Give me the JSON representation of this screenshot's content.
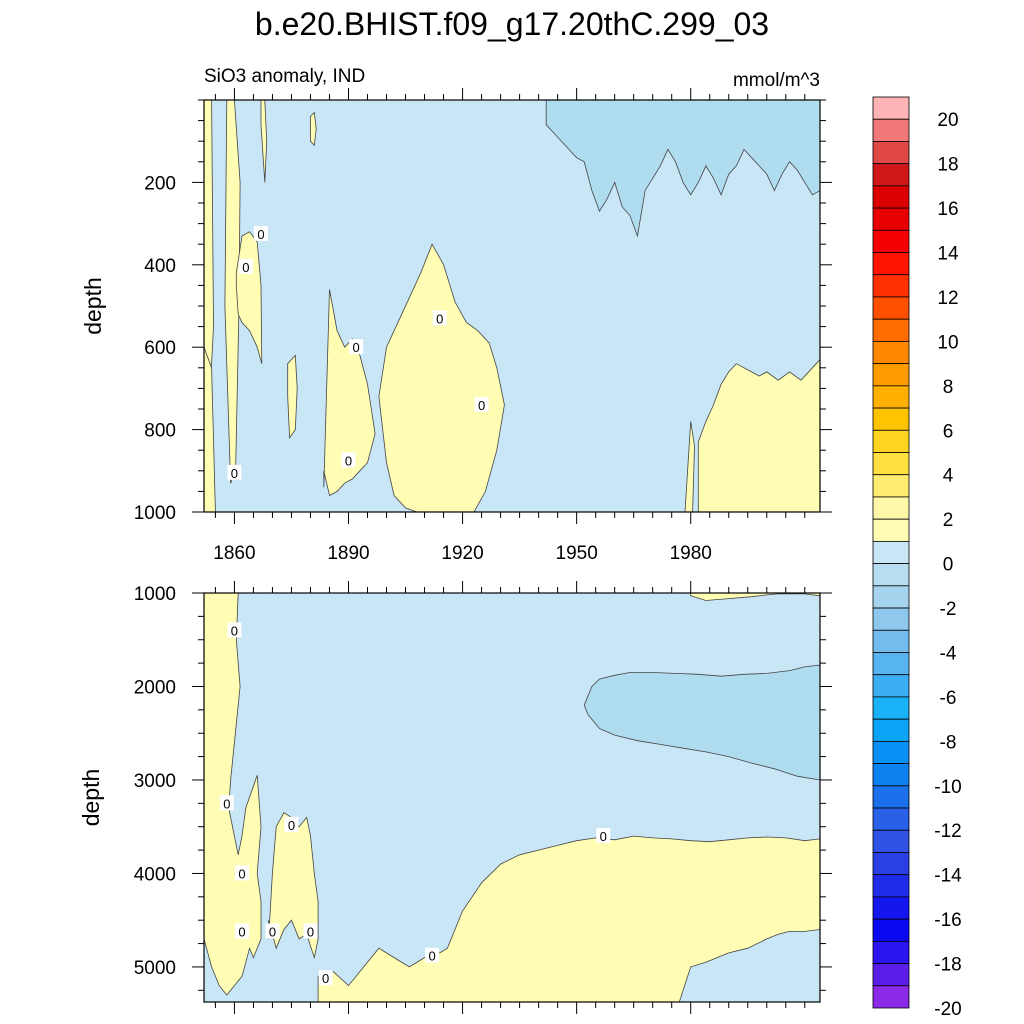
{
  "title": "b.e20.BHIST.f09_g17.20thC.299_03",
  "subtitle_left": "SiO3 anomaly, IND",
  "subtitle_right": "mmol/m^3",
  "chart_data": [
    {
      "type": "heatmap",
      "panel": "upper",
      "ylabel": "depth",
      "ylim": [
        1000,
        0
      ],
      "xlim": [
        1852,
        2014
      ],
      "xticks": [
        "1860",
        "1890",
        "1920",
        "1950",
        "1980"
      ],
      "xtick_values": [
        1860,
        1890,
        1920,
        1950,
        1980
      ],
      "yticks": [
        "200",
        "400",
        "600",
        "800",
        "1000"
      ],
      "ytick_values": [
        200,
        400,
        600,
        800,
        1000
      ],
      "background_level": "-2 to 0",
      "regions": [
        {
          "level": "0 to 2",
          "t": [
            1852,
            1854,
            1854.5,
            1852
          ],
          "d": [
            0,
            0,
            550,
            1000
          ]
        },
        {
          "level": "0 to 2",
          "t": [
            1852,
            1854,
            1855,
            1853,
            1852
          ],
          "d": [
            600,
            650,
            1000,
            1000,
            1000
          ]
        },
        {
          "level": "0 to 2",
          "t": [
            1858,
            1860,
            1861.5,
            1861.2,
            1860.3,
            1859,
            1857.5
          ],
          "d": [
            0,
            0,
            200,
            500,
            900,
            930,
            500
          ]
        },
        {
          "level": "0 to 2",
          "t": [
            1860.5,
            1862,
            1864,
            1866,
            1867,
            1867.2,
            1866,
            1864,
            1862,
            1861,
            1860.5
          ],
          "d": [
            420,
            330,
            320,
            345,
            450,
            640,
            600,
            560,
            540,
            520,
            450
          ]
        },
        {
          "level": "0 to 2",
          "t": [
            1867,
            1868,
            1868.5,
            1868,
            1867
          ],
          "d": [
            0,
            0,
            100,
            200,
            60
          ]
        },
        {
          "level": "0 to 2",
          "t": [
            1874,
            1876,
            1876.5,
            1876,
            1874.5,
            1874
          ],
          "d": [
            640,
            620,
            700,
            800,
            820,
            720
          ]
        },
        {
          "level": "0 to 2",
          "t": [
            1883.5,
            1885,
            1887,
            1889,
            1891,
            1893,
            1895,
            1896,
            1897,
            1895,
            1893,
            1891,
            1889,
            1887,
            1885,
            1883.5
          ],
          "d": [
            940,
            460,
            560,
            600,
            580,
            620,
            690,
            750,
            810,
            880,
            900,
            920,
            930,
            950,
            960,
            900
          ]
        },
        {
          "level": "0 to 2",
          "t": [
            1898,
            1900,
            1902,
            1904,
            1906,
            1909,
            1912,
            1915,
            1918,
            1921,
            1924,
            1927,
            1929,
            1931,
            1929,
            1926,
            1923,
            1920,
            1917,
            1914,
            1911,
            1908,
            1905,
            1902,
            1900
          ],
          "d": [
            720,
            600,
            560,
            520,
            480,
            420,
            350,
            400,
            490,
            540,
            560,
            590,
            650,
            740,
            850,
            950,
            1000,
            1000,
            1000,
            1000,
            1000,
            1000,
            990,
            960,
            880
          ]
        },
        {
          "level": "0 to 2",
          "t": [
            1880,
            1881,
            1881.5,
            1881,
            1880
          ],
          "d": [
            40,
            30,
            70,
            110,
            100
          ]
        },
        {
          "level": "0 to 2",
          "t": [
            1978.5,
            1980,
            1981,
            1980.5,
            1979
          ],
          "d": [
            1000,
            780,
            840,
            1000,
            1000
          ]
        },
        {
          "level": "0 to 2",
          "t": [
            1982,
            1984,
            1986,
            1988,
            1990,
            1992,
            1994,
            1996,
            1998,
            2000,
            2003,
            2006,
            2009,
            2012,
            2014,
            2014,
            1982
          ],
          "d": [
            830,
            780,
            740,
            690,
            660,
            640,
            650,
            660,
            670,
            660,
            680,
            660,
            680,
            650,
            630,
            1000,
            1000
          ]
        },
        {
          "level": "-4 to -2",
          "t": [
            1942,
            1945,
            1948,
            1950,
            1952,
            1954,
            1956,
            1958,
            1960,
            1962,
            1964,
            1966,
            1968,
            1970,
            1972,
            1974,
            1976,
            1978,
            1980,
            1982,
            1984,
            1986,
            1988,
            1990,
            1992,
            1994,
            1996,
            1998,
            2000,
            2002,
            2004,
            2006,
            2008,
            2010,
            2012,
            2014,
            2014,
            1942
          ],
          "d": [
            60,
            90,
            120,
            140,
            150,
            220,
            270,
            240,
            200,
            260,
            280,
            330,
            220,
            190,
            160,
            120,
            150,
            200,
            230,
            200,
            160,
            190,
            230,
            180,
            160,
            120,
            140,
            160,
            180,
            220,
            180,
            150,
            170,
            200,
            230,
            220,
            0,
            0
          ]
        }
      ],
      "contour_labels": [
        {
          "text": "0",
          "t": 1867,
          "d": 325
        },
        {
          "text": "0",
          "t": 1863,
          "d": 405
        },
        {
          "text": "0",
          "t": 1914,
          "d": 530
        },
        {
          "text": "0",
          "t": 1892,
          "d": 600
        },
        {
          "text": "0",
          "t": 1925,
          "d": 740
        },
        {
          "text": "0",
          "t": 1860,
          "d": 905
        },
        {
          "text": "0",
          "t": 1890,
          "d": 875
        }
      ]
    },
    {
      "type": "heatmap",
      "panel": "lower",
      "ylabel": "depth",
      "ylim": [
        5375,
        1000
      ],
      "xlim": [
        1852,
        2014
      ],
      "yticks": [
        "1000",
        "2000",
        "3000",
        "4000",
        "5000"
      ],
      "ytick_values": [
        1000,
        2000,
        3000,
        4000,
        5000
      ],
      "background_level": "-2 to 0",
      "regions": [
        {
          "level": "0 to 2",
          "t": [
            1852,
            1861,
            1860.5,
            1861.5,
            1860,
            1859,
            1858.5,
            1860,
            1861,
            1862,
            1863,
            1866,
            1867,
            1866,
            1867,
            1867,
            1865,
            1864,
            1862,
            1860,
            1858,
            1856,
            1854,
            1852
          ],
          "d": [
            1000,
            1000,
            1500,
            2000,
            2600,
            3000,
            3300,
            3600,
            3800,
            3600,
            3300,
            2950,
            3500,
            4000,
            4300,
            4700,
            4900,
            4800,
            5100,
            5200,
            5300,
            5200,
            5000,
            4700
          ]
        },
        {
          "level": "0 to 2",
          "t": [
            1869,
            1870,
            1871,
            1873,
            1875,
            1877,
            1879,
            1880,
            1881,
            1882,
            1882,
            1881,
            1879,
            1877,
            1875,
            1873,
            1871,
            1869
          ],
          "d": [
            4700,
            4000,
            3500,
            3350,
            3400,
            3500,
            3400,
            3600,
            4000,
            4300,
            4700,
            4900,
            4650,
            4700,
            4500,
            4600,
            4800,
            4500
          ]
        },
        {
          "level": "0 to 2",
          "t": [
            1882,
            1886,
            1890,
            1894,
            1898,
            1902,
            1906,
            1910,
            1914,
            1916,
            1920,
            1925,
            1930,
            1935,
            1940,
            1945,
            1950,
            1955,
            1960,
            1965,
            1970,
            1975,
            1980,
            1985,
            1990,
            1995,
            2000,
            2005,
            2010,
            2014,
            2014,
            1882
          ],
          "d": [
            5100,
            5050,
            5200,
            5000,
            4800,
            4900,
            5000,
            4900,
            4850,
            4800,
            4400,
            4100,
            3900,
            3800,
            3750,
            3700,
            3650,
            3620,
            3640,
            3600,
            3620,
            3630,
            3650,
            3660,
            3640,
            3620,
            3610,
            3620,
            3650,
            3630,
            5375,
            5375
          ]
        },
        {
          "level": "0 to 2",
          "t": [
            1980,
            1984,
            1990,
            1996,
            2000,
            2003,
            2006,
            2010,
            2014,
            2014,
            1980
          ],
          "d": [
            1030,
            1080,
            1060,
            1040,
            1020,
            1010,
            1010,
            1010,
            1030,
            1000,
            1000
          ]
        },
        {
          "level": "-2 to 0",
          "t": [
            1977,
            1980,
            1984,
            1990,
            1995,
            2000,
            2003,
            2006,
            2010,
            2014,
            2014,
            1977
          ],
          "d": [
            5375,
            5000,
            4950,
            4850,
            4800,
            4700,
            4650,
            4620,
            4620,
            4600,
            5375,
            5375
          ]
        },
        {
          "level": "-4 to -2",
          "t": [
            1952,
            1954,
            1956,
            1960,
            1964,
            1970,
            1976,
            1982,
            1988,
            1994,
            2000,
            2006,
            2010,
            2014,
            2014,
            2008,
            2002,
            1996,
            1990,
            1984,
            1978,
            1972,
            1966,
            1960,
            1956,
            1953
          ],
          "d": [
            2200,
            2000,
            1920,
            1880,
            1850,
            1850,
            1860,
            1870,
            1890,
            1870,
            1860,
            1830,
            1790,
            1770,
            3000,
            2960,
            2880,
            2820,
            2750,
            2700,
            2660,
            2620,
            2580,
            2520,
            2450,
            2300
          ]
        }
      ],
      "contour_labels": [
        {
          "text": "0",
          "t": 1860,
          "d": 1400
        },
        {
          "text": "0",
          "t": 1858,
          "d": 3250
        },
        {
          "text": "0",
          "t": 1875,
          "d": 3480
        },
        {
          "text": "0",
          "t": 1862,
          "d": 4000
        },
        {
          "text": "0",
          "t": 1870,
          "d": 4620
        },
        {
          "text": "0",
          "t": 1880,
          "d": 4620
        },
        {
          "text": "0",
          "t": 1862,
          "d": 4620
        },
        {
          "text": "0",
          "t": 1884,
          "d": 5120
        },
        {
          "text": "0",
          "t": 1912,
          "d": 4880
        },
        {
          "text": "0",
          "t": 1957,
          "d": 3600
        }
      ]
    }
  ],
  "colorbar": {
    "labels": [
      "20",
      "18",
      "16",
      "14",
      "12",
      "10",
      "8",
      "6",
      "4",
      "2",
      "0",
      "-2",
      "-4",
      "-6",
      "-8",
      "-10",
      "-12",
      "-14",
      "-16",
      "-18",
      "-20"
    ],
    "colors": [
      "#ffb5b5",
      "#f07878",
      "#e04848",
      "#d01818",
      "#dc0000",
      "#e80000",
      "#f40000",
      "#ff1400",
      "#ff3000",
      "#ff5000",
      "#ff6c00",
      "#ff8800",
      "#ff9c00",
      "#ffb000",
      "#ffc400",
      "#ffd420",
      "#ffe040",
      "#ffec70",
      "#fff8a8",
      "#fffcb4",
      "#c8e6f6",
      "#b8def2",
      "#a6d4ee",
      "#8ec8ec",
      "#72bcee",
      "#58b4f0",
      "#3caef2",
      "#1ab2f6",
      "#0aa4f6",
      "#0890f4",
      "#0c82f0",
      "#1c70ec",
      "#2860e8",
      "#3052e4",
      "#2a40e4",
      "#1f2ce8",
      "#1416ee",
      "#0a08f0",
      "#2c14f0",
      "#5a1ee8",
      "#8a2ae8"
    ]
  },
  "colors": {
    "positive_fill": "#fffcb4",
    "negative_fill": "#c8e6f6",
    "negative_deep": "#b0dcf0",
    "contour": "#444444"
  }
}
